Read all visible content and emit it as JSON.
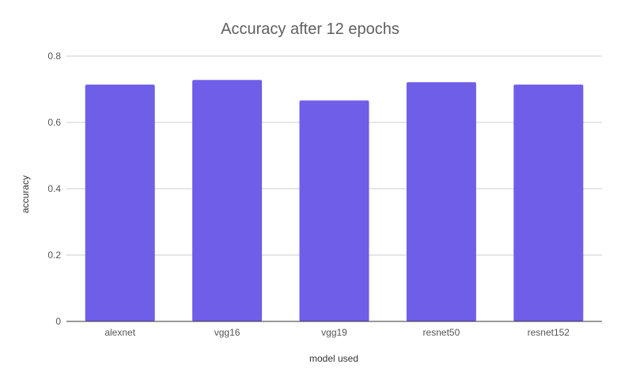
{
  "chart_data": {
    "type": "bar",
    "title": "Accuracy after 12 epochs",
    "xlabel": "model used",
    "ylabel": "accuracy",
    "categories": [
      "alexnet",
      "vgg16",
      "vgg19",
      "resnet50",
      "resnet152"
    ],
    "values": [
      0.714,
      0.728,
      0.666,
      0.721,
      0.714
    ],
    "ylim": [
      0,
      0.8
    ],
    "yticks": [
      "0",
      "0.2",
      "0.4",
      "0.6",
      "0.8"
    ],
    "ytick_values": [
      0,
      0.2,
      0.4,
      0.6,
      0.8
    ],
    "grid": true,
    "legend": "none",
    "bar_color": "#6f5ee8"
  }
}
